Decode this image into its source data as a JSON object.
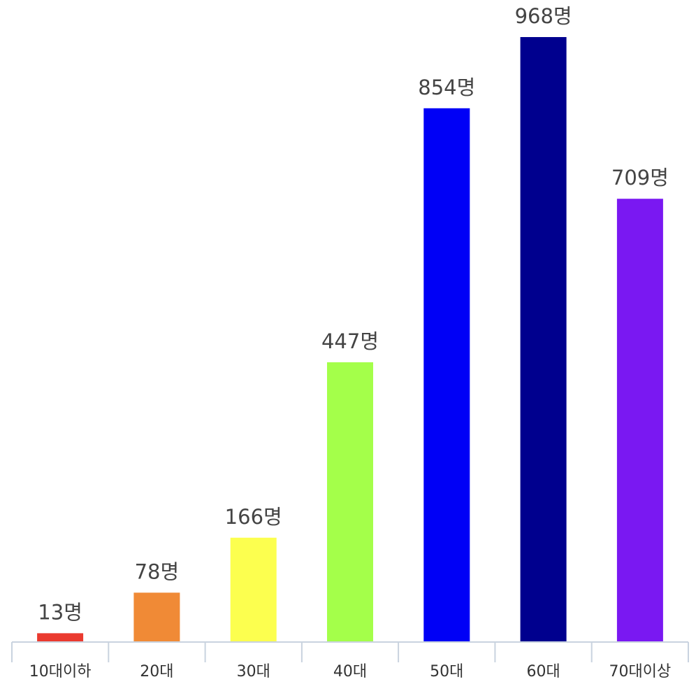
{
  "chart_data": {
    "type": "bar",
    "title": "",
    "xlabel": "",
    "ylabel": "",
    "ylim": [
      0,
      968
    ],
    "grid": false,
    "legend": "none",
    "categories": [
      "10대이하",
      "20대",
      "30대",
      "40대",
      "50대",
      "60대",
      "70대이상"
    ],
    "values": [
      13,
      78,
      166,
      447,
      854,
      968,
      709
    ],
    "value_labels": [
      "13명",
      "78명",
      "166명",
      "447명",
      "854명",
      "968명",
      "709명"
    ],
    "colors": [
      "#ea3a2f",
      "#f08a36",
      "#fcff4f",
      "#a4ff4a",
      "#0000f6",
      "#00008e",
      "#7a18f2"
    ],
    "axis_color": "#c9d3df",
    "label_color": "#444444"
  }
}
